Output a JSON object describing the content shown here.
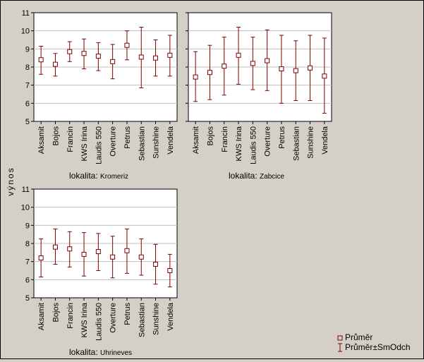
{
  "y_axis_label": "výnos",
  "legend": {
    "mean_label": "Průměr",
    "range_label": "Průměr±SmOdch"
  },
  "colors": {
    "background": "#d4d0c8",
    "plot_bg": "#ffffff",
    "marker": "#800000",
    "grid": "#c0c0c0"
  },
  "chart_data": [
    {
      "type": "errorbar",
      "panel_label_prefix": "lokalita:",
      "panel_label_value": "Kromeriz",
      "categories": [
        "Aksamit",
        "Bojos",
        "Francin",
        "KWS Irina",
        "Laudis 550",
        "Overture",
        "Petrus",
        "Sebastian",
        "Sunshine",
        "Vendela"
      ],
      "mean": [
        8.4,
        8.15,
        8.85,
        8.75,
        8.6,
        8.3,
        9.2,
        8.55,
        8.5,
        8.65
      ],
      "lower": [
        7.6,
        7.5,
        8.3,
        7.9,
        7.8,
        7.35,
        8.4,
        6.85,
        7.5,
        7.5
      ],
      "upper": [
        9.15,
        8.75,
        9.4,
        9.55,
        9.35,
        9.25,
        10.0,
        10.2,
        9.5,
        9.75
      ],
      "ylim": [
        5,
        11
      ],
      "yticks": [
        5,
        6,
        7,
        8,
        9,
        10,
        11
      ]
    },
    {
      "type": "errorbar",
      "panel_label_prefix": "lokalita:",
      "panel_label_value": "Zabcice",
      "categories": [
        "Aksamit",
        "Bojos",
        "Francin",
        "KWS Irina",
        "Laudis 550",
        "Overture",
        "Petrus",
        "Sebastian",
        "Sunshine",
        "Vendela"
      ],
      "mean": [
        7.45,
        7.7,
        8.05,
        8.65,
        8.2,
        8.35,
        7.9,
        7.8,
        7.95,
        7.5
      ],
      "lower": [
        6.1,
        6.2,
        6.45,
        7.05,
        6.75,
        6.7,
        6.0,
        6.15,
        6.15,
        5.45
      ],
      "upper": [
        8.85,
        9.2,
        9.65,
        10.2,
        9.65,
        10.05,
        9.75,
        9.45,
        9.75,
        9.6
      ],
      "ylim": [
        5,
        11
      ],
      "yticks": [
        5,
        6,
        7,
        8,
        9,
        10,
        11
      ]
    },
    {
      "type": "errorbar",
      "panel_label_prefix": "lokalita:",
      "panel_label_value": "Uhrineves",
      "categories": [
        "Aksamit",
        "Bojos",
        "Francin",
        "KWS Irina",
        "Laudis 550",
        "Overture",
        "Petrus",
        "Sebastian",
        "Sunshine",
        "Vendela"
      ],
      "mean": [
        7.2,
        7.8,
        7.7,
        7.4,
        7.55,
        7.25,
        7.6,
        7.25,
        6.85,
        6.5
      ],
      "lower": [
        6.15,
        6.85,
        6.7,
        6.2,
        6.5,
        6.1,
        6.35,
        6.25,
        5.75,
        5.6
      ],
      "upper": [
        8.25,
        8.8,
        8.65,
        8.6,
        8.55,
        8.4,
        8.8,
        8.25,
        7.95,
        7.4
      ],
      "ylim": [
        5,
        11
      ],
      "yticks": [
        5,
        6,
        7,
        8,
        9,
        10,
        11
      ]
    }
  ]
}
